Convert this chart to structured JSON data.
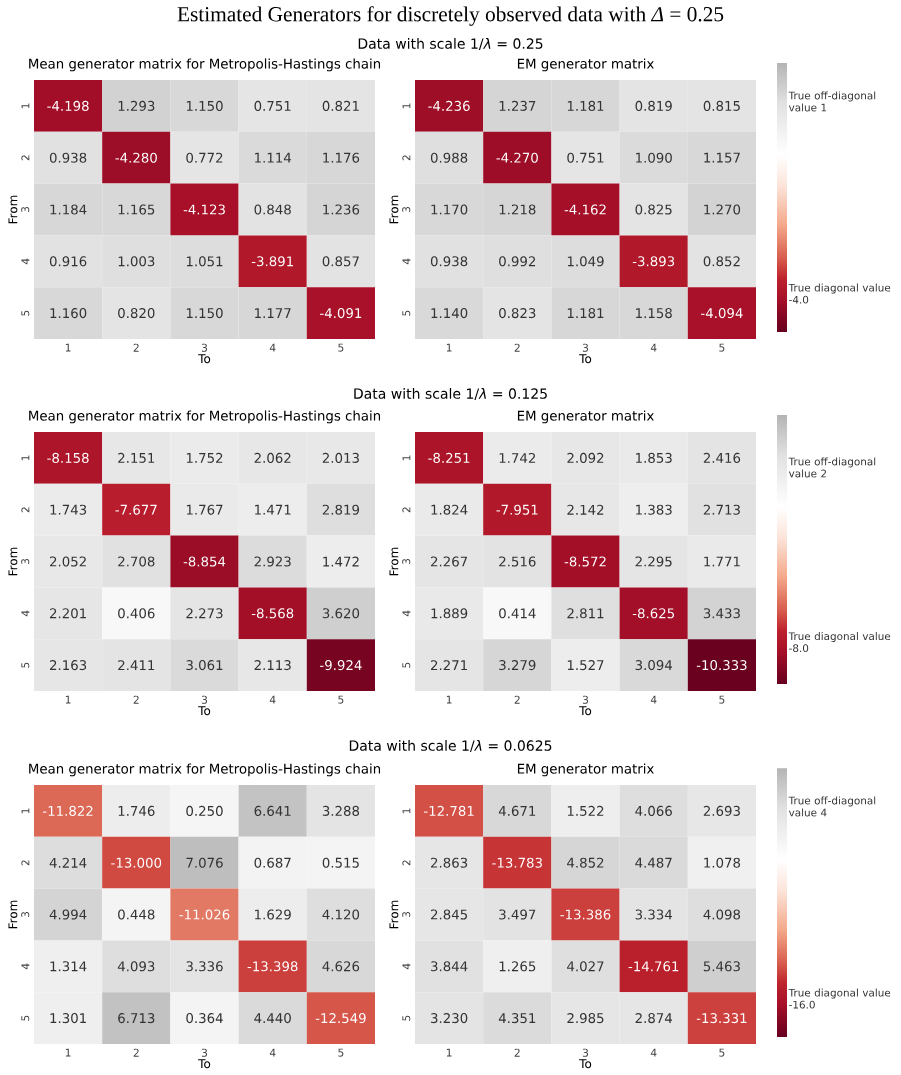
{
  "chart_data": [
    {
      "type": "heatmap",
      "annotations": [
        "Estimated Generators for discretely observed data with *Δ* = 0.25"
      ],
      "title": "Mean generator matrix for Metropolis-Hastings chain",
      "xlabel": "To",
      "ylabel": "From",
      "categories": [
        "1",
        "2",
        "3",
        "4",
        "5"
      ],
      "y_categories": [
        "1",
        "2",
        "3",
        "4",
        "5"
      ],
      "cells": [
        [
          -4.198,
          1.293,
          1.15,
          0.751,
          0.821
        ],
        [
          0.938,
          -4.28,
          0.772,
          1.114,
          1.176
        ],
        [
          1.184,
          1.165,
          -4.123,
          0.848,
          1.236
        ],
        [
          0.916,
          1.003,
          1.051,
          -3.891,
          0.857
        ],
        [
          1.16,
          0.82,
          1.15,
          1.177,
          -4.091
        ]
      ],
      "cell_labels": [
        [
          "-4.198",
          "1.293",
          "1.150",
          "0.751",
          "0.821"
        ],
        [
          "0.938",
          "-4.280",
          "0.772",
          "1.114",
          "1.176"
        ],
        [
          "1.184",
          "1.165",
          "-4.123",
          "0.848",
          "1.236"
        ],
        [
          "0.916",
          "1.003",
          "1.051",
          "-3.891",
          "0.857"
        ],
        [
          "1.160",
          "0.820",
          "1.150",
          "1.177",
          "-4.091"
        ]
      ]
    },
    {
      "type": "heatmap",
      "subtitle": "Data with scale 1/*λ* = 0.25",
      "title": "EM generator matrix",
      "xlabel": "To",
      "ylabel": "From",
      "categories": [
        "1",
        "2",
        "3",
        "4",
        "5"
      ],
      "y_categories": [
        "1",
        "2",
        "3",
        "4",
        "5"
      ],
      "clim": [
        -5,
        2
      ],
      "cticks": [
        {
          "value": 1,
          "label": "True off-diagonal value 1"
        },
        {
          "value": -4.0,
          "label": "True diagonal value -4.0"
        }
      ],
      "cells": [
        [
          -4.236,
          1.237,
          1.181,
          0.819,
          0.815
        ],
        [
          0.988,
          -4.27,
          0.751,
          1.09,
          1.157
        ],
        [
          1.17,
          1.218,
          -4.162,
          0.825,
          1.27
        ],
        [
          0.938,
          0.992,
          1.049,
          -3.893,
          0.852
        ],
        [
          1.14,
          0.823,
          1.181,
          1.158,
          -4.094
        ]
      ],
      "cell_labels": [
        [
          "-4.236",
          "1.237",
          "1.181",
          "0.819",
          "0.815"
        ],
        [
          "0.988",
          "-4.270",
          "0.751",
          "1.090",
          "1.157"
        ],
        [
          "1.170",
          "1.218",
          "-4.162",
          "0.825",
          "1.270"
        ],
        [
          "0.938",
          "0.992",
          "1.049",
          "-3.893",
          "0.852"
        ],
        [
          "1.140",
          "0.823",
          "1.181",
          "1.158",
          "-4.094"
        ]
      ]
    },
    {
      "type": "heatmap",
      "title": "Mean generator matrix for Metropolis-Hastings chain",
      "xlabel": "To",
      "ylabel": "From",
      "categories": [
        "1",
        "2",
        "3",
        "4",
        "5"
      ],
      "y_categories": [
        "1",
        "2",
        "3",
        "4",
        "5"
      ],
      "cells": [
        [
          -8.158,
          2.151,
          1.752,
          2.062,
          2.013
        ],
        [
          1.743,
          -7.677,
          1.767,
          1.471,
          2.819
        ],
        [
          2.052,
          2.708,
          -8.854,
          2.923,
          1.472
        ],
        [
          2.201,
          0.406,
          2.273,
          -8.568,
          3.62
        ],
        [
          2.163,
          2.411,
          3.061,
          2.113,
          -9.924
        ]
      ],
      "cell_labels": [
        [
          "-8.158",
          "2.151",
          "1.752",
          "2.062",
          "2.013"
        ],
        [
          "1.743",
          "-7.677",
          "1.767",
          "1.471",
          "2.819"
        ],
        [
          "2.052",
          "2.708",
          "-8.854",
          "2.923",
          "1.472"
        ],
        [
          "2.201",
          "0.406",
          "2.273",
          "-8.568",
          "3.620"
        ],
        [
          "2.163",
          "2.411",
          "3.061",
          "2.113",
          "-9.924"
        ]
      ]
    },
    {
      "type": "heatmap",
      "subtitle": "Data with scale 1/*λ* = 0.125",
      "title": "EM generator matrix",
      "xlabel": "To",
      "ylabel": "From",
      "categories": [
        "1",
        "2",
        "3",
        "4",
        "5"
      ],
      "y_categories": [
        "1",
        "2",
        "3",
        "4",
        "5"
      ],
      "clim": [
        -10.4,
        5
      ],
      "cticks": [
        {
          "value": 2,
          "label": "True off-diagonal value 2"
        },
        {
          "value": -8.0,
          "label": "True diagonal value -8.0"
        }
      ],
      "cells": [
        [
          -8.251,
          1.742,
          2.092,
          1.853,
          2.416
        ],
        [
          1.824,
          -7.951,
          2.142,
          1.383,
          2.713
        ],
        [
          2.267,
          2.516,
          -8.572,
          2.295,
          1.771
        ],
        [
          1.889,
          0.414,
          2.811,
          -8.625,
          3.433
        ],
        [
          2.271,
          3.279,
          1.527,
          3.094,
          -10.333
        ]
      ],
      "cell_labels": [
        [
          "-8.251",
          "1.742",
          "2.092",
          "1.853",
          "2.416"
        ],
        [
          "1.824",
          "-7.951",
          "2.142",
          "1.383",
          "2.713"
        ],
        [
          "2.267",
          "2.516",
          "-8.572",
          "2.295",
          "1.771"
        ],
        [
          "1.889",
          "0.414",
          "2.811",
          "-8.625",
          "3.433"
        ],
        [
          "2.271",
          "3.279",
          "1.527",
          "3.094",
          "-10.333"
        ]
      ]
    },
    {
      "type": "heatmap",
      "title": "Mean generator matrix for Metropolis-Hastings chain",
      "xlabel": "To",
      "ylabel": "From",
      "categories": [
        "1",
        "2",
        "3",
        "4",
        "5"
      ],
      "y_categories": [
        "1",
        "2",
        "3",
        "4",
        "5"
      ],
      "cells": [
        [
          -11.822,
          1.746,
          0.25,
          6.641,
          3.288
        ],
        [
          4.214,
          -13.0,
          7.076,
          0.687,
          0.515
        ],
        [
          4.994,
          0.448,
          -11.026,
          1.629,
          4.12
        ],
        [
          1.314,
          4.093,
          3.336,
          -13.398,
          4.626
        ],
        [
          1.301,
          6.713,
          0.364,
          4.44,
          -12.549
        ]
      ],
      "cell_labels": [
        [
          "-11.822",
          "1.746",
          "0.250",
          "6.641",
          "3.288"
        ],
        [
          "4.214",
          "-13.000",
          "7.076",
          "0.687",
          "0.515"
        ],
        [
          "4.994",
          "0.448",
          "-11.026",
          "1.629",
          "4.120"
        ],
        [
          "1.314",
          "4.093",
          "3.336",
          "-13.398",
          "4.626"
        ],
        [
          "1.301",
          "6.713",
          "0.364",
          "4.440",
          "-12.549"
        ]
      ]
    },
    {
      "type": "heatmap",
      "subtitle": "Data with scale 1/*λ* = 0.0625",
      "title": "EM generator matrix",
      "xlabel": "To",
      "ylabel": "From",
      "categories": [
        "1",
        "2",
        "3",
        "4",
        "5"
      ],
      "y_categories": [
        "1",
        "2",
        "3",
        "4",
        "5"
      ],
      "clim": [
        -20,
        8
      ],
      "cticks": [
        {
          "value": 4,
          "label": "True off-diagonal value 4"
        },
        {
          "value": -16.0,
          "label": "True diagonal value -16.0"
        }
      ],
      "cells": [
        [
          -12.781,
          4.671,
          1.522,
          4.066,
          2.693
        ],
        [
          2.863,
          -13.783,
          4.852,
          4.487,
          1.078
        ],
        [
          2.845,
          3.497,
          -13.386,
          3.334,
          4.098
        ],
        [
          3.844,
          1.265,
          4.027,
          -14.761,
          5.463
        ],
        [
          3.23,
          4.351,
          2.985,
          2.874,
          -13.331
        ]
      ],
      "cell_labels": [
        [
          "-12.781",
          "4.671",
          "1.522",
          "4.066",
          "2.693"
        ],
        [
          "2.863",
          "-13.783",
          "4.852",
          "4.487",
          "1.078"
        ],
        [
          "2.845",
          "3.497",
          "-13.386",
          "3.334",
          "4.098"
        ],
        [
          "3.844",
          "1.265",
          "4.027",
          "-14.761",
          "5.463"
        ],
        [
          "3.230",
          "4.351",
          "2.985",
          "2.874",
          "-13.331"
        ]
      ]
    }
  ]
}
